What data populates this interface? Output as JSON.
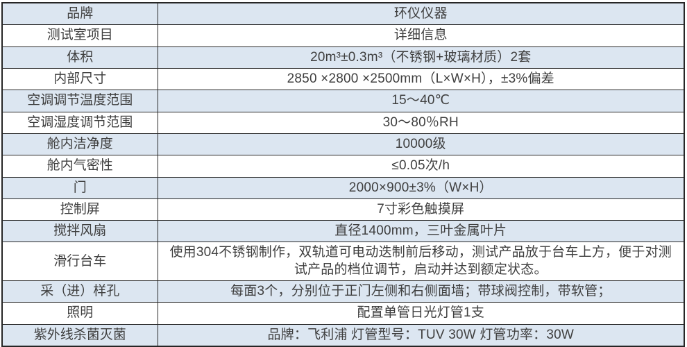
{
  "page": {
    "background_color": "#ffffff"
  },
  "table": {
    "accent_row_color": "#dce6f1",
    "border_color": "#262626",
    "text_color": "#3f3f3f",
    "rows": [
      {
        "label": "品牌",
        "value": "环仪仪器"
      },
      {
        "label": "测试室项目",
        "value": "详细信息"
      },
      {
        "label": "体积",
        "value": "20m³±0.3m³（不锈钢+玻璃材质）2套"
      },
      {
        "label": "内部尺寸",
        "value": "2850 ×2800 ×2500mm（L×W×H），±3%偏差"
      },
      {
        "label": "空调调节温度范围",
        "value": "15～40℃"
      },
      {
        "label": "空调湿度调节范围",
        "value": "30～80％RH"
      },
      {
        "label": "舱内洁净度",
        "value": "10000级"
      },
      {
        "label": "舱内气密性",
        "value": "≤0.05次/h"
      },
      {
        "label": "门",
        "value": "2000×900±3%（W×H）"
      },
      {
        "label": "控制屏",
        "value": "7寸彩色触摸屏"
      },
      {
        "label": "搅拌风扇",
        "value": "直径1400mm，三叶金属叶片"
      },
      {
        "label": "滑行台车",
        "value": "使用304不锈钢制作，双轨道可电动迭制前后移动，测试产品放于台车上方，便于对测试产品的档位调节，启动并达到额定状态。"
      },
      {
        "label": "采（进）样孔",
        "value": "每面3个，分别位于正门左侧和右侧面墙；带球阀控制，带软管；"
      },
      {
        "label": "照明",
        "value": "配置单管日光灯管1支"
      },
      {
        "label": "紫外线杀菌灭菌",
        "value": "品牌：飞利浦 灯管型号：TUV 30W 灯管功率：30W"
      }
    ]
  }
}
